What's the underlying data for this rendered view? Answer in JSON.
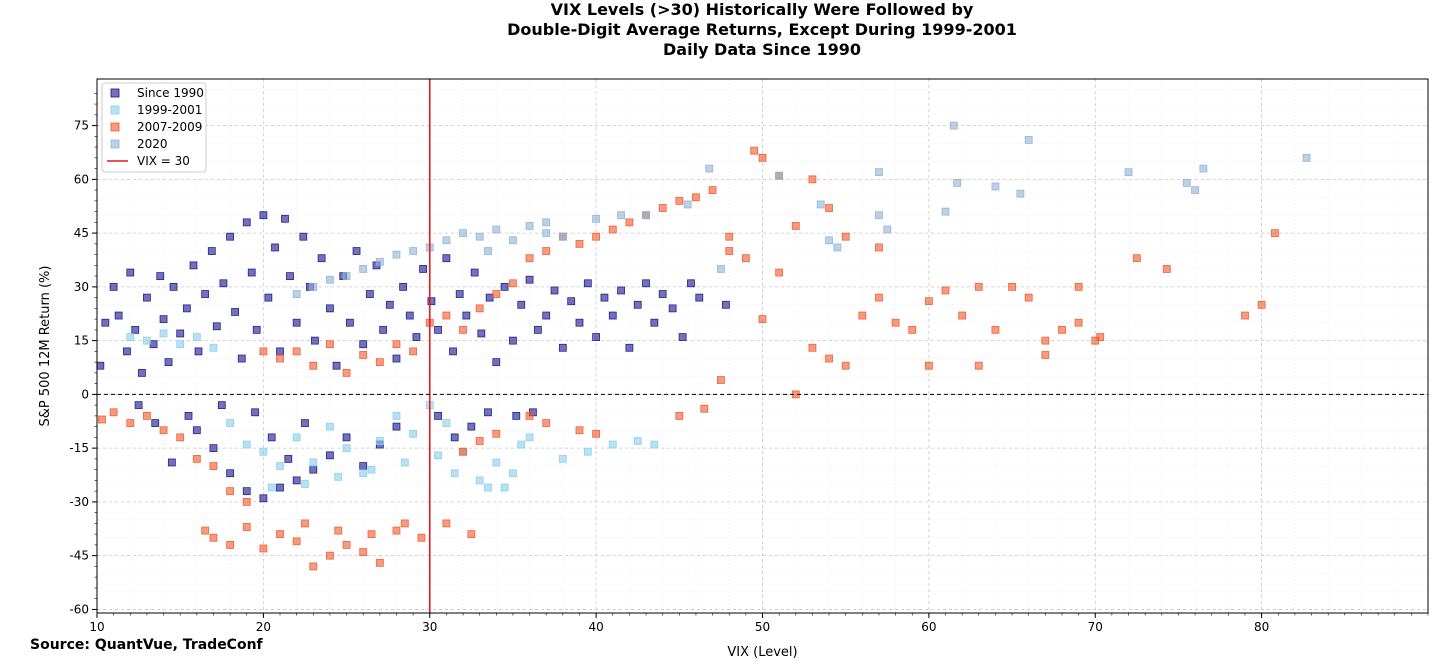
{
  "chart_data": {
    "type": "scatter",
    "title_lines": [
      "VIX Levels (>30) Historically Were Followed by",
      "Double-Digit Average Returns, Except During 1999-2001",
      "Daily Data Since 1990"
    ],
    "xlabel": "VIX (Level)",
    "ylabel": "S&P 500 12M Return (%)",
    "xlim": [
      10,
      90
    ],
    "ylim": [
      -61,
      88
    ],
    "xticks": [
      10,
      20,
      30,
      40,
      50,
      60,
      70,
      80
    ],
    "yticks": [
      -60,
      -45,
      -30,
      -15,
      0,
      15,
      30,
      45,
      60,
      75
    ],
    "grid": true,
    "legend_position": "top-left",
    "reference_lines": [
      {
        "orientation": "vertical",
        "value": 30,
        "label": "VIX = 30",
        "color": "#e41a1c"
      },
      {
        "orientation": "horizontal",
        "value": 0,
        "style": "dashed",
        "color": "#000000"
      }
    ],
    "series": [
      {
        "name": "Since 1990",
        "color": "#14148c",
        "points": [
          [
            10.2,
            8
          ],
          [
            10.5,
            20
          ],
          [
            11,
            30
          ],
          [
            11.3,
            22
          ],
          [
            11.8,
            12
          ],
          [
            12,
            34
          ],
          [
            12.3,
            18
          ],
          [
            12.7,
            6
          ],
          [
            13,
            27
          ],
          [
            13.4,
            14
          ],
          [
            13.8,
            33
          ],
          [
            14,
            21
          ],
          [
            14.3,
            9
          ],
          [
            14.6,
            30
          ],
          [
            15,
            17
          ],
          [
            15.4,
            24
          ],
          [
            15.8,
            36
          ],
          [
            16.1,
            12
          ],
          [
            16.5,
            28
          ],
          [
            16.9,
            40
          ],
          [
            17.2,
            19
          ],
          [
            17.6,
            31
          ],
          [
            18,
            44
          ],
          [
            18.3,
            23
          ],
          [
            18.7,
            10
          ],
          [
            19,
            48
          ],
          [
            19.3,
            34
          ],
          [
            19.6,
            18
          ],
          [
            20,
            50
          ],
          [
            20.3,
            27
          ],
          [
            20.7,
            41
          ],
          [
            21,
            12
          ],
          [
            21.3,
            49
          ],
          [
            21.6,
            33
          ],
          [
            22,
            20
          ],
          [
            22.4,
            44
          ],
          [
            22.8,
            30
          ],
          [
            23.1,
            15
          ],
          [
            23.5,
            38
          ],
          [
            24,
            24
          ],
          [
            24.4,
            8
          ],
          [
            24.8,
            33
          ],
          [
            25.2,
            20
          ],
          [
            25.6,
            40
          ],
          [
            26,
            14
          ],
          [
            26.4,
            28
          ],
          [
            26.8,
            36
          ],
          [
            27.2,
            18
          ],
          [
            27.6,
            25
          ],
          [
            28,
            10
          ],
          [
            28.4,
            30
          ],
          [
            28.8,
            22
          ],
          [
            29.2,
            16
          ],
          [
            29.6,
            35
          ],
          [
            30.1,
            26
          ],
          [
            30.5,
            18
          ],
          [
            31,
            38
          ],
          [
            31.4,
            12
          ],
          [
            31.8,
            28
          ],
          [
            32.2,
            22
          ],
          [
            32.7,
            34
          ],
          [
            33.1,
            17
          ],
          [
            33.6,
            27
          ],
          [
            34,
            9
          ],
          [
            34.5,
            30
          ],
          [
            35,
            15
          ],
          [
            35.5,
            25
          ],
          [
            36,
            32
          ],
          [
            36.5,
            18
          ],
          [
            37,
            22
          ],
          [
            37.5,
            29
          ],
          [
            38,
            13
          ],
          [
            38.5,
            26
          ],
          [
            39,
            20
          ],
          [
            39.5,
            31
          ],
          [
            40,
            16
          ],
          [
            40.5,
            27
          ],
          [
            41,
            22
          ],
          [
            41.5,
            29
          ],
          [
            42,
            13
          ],
          [
            42.5,
            25
          ],
          [
            43,
            31
          ],
          [
            43.5,
            20
          ],
          [
            44,
            28
          ],
          [
            44.6,
            24
          ],
          [
            45.2,
            16
          ],
          [
            45.7,
            31
          ],
          [
            46.2,
            27
          ],
          [
            47.8,
            25
          ],
          [
            12.5,
            -3
          ],
          [
            13.5,
            -8
          ],
          [
            14.5,
            -19
          ],
          [
            16,
            -10
          ],
          [
            17,
            -15
          ],
          [
            18,
            -22
          ],
          [
            19,
            -27
          ],
          [
            20,
            -29
          ],
          [
            21,
            -26
          ],
          [
            22,
            -24
          ],
          [
            23,
            -21
          ],
          [
            24,
            -17
          ],
          [
            25,
            -12
          ],
          [
            26,
            -20
          ],
          [
            27,
            -14
          ],
          [
            28,
            -9
          ],
          [
            30.5,
            -6
          ],
          [
            31.5,
            -12
          ],
          [
            32.5,
            -9
          ],
          [
            33.5,
            -5
          ],
          [
            35.2,
            -6
          ],
          [
            36.2,
            -5
          ],
          [
            19.5,
            -5
          ],
          [
            20.5,
            -12
          ],
          [
            21.5,
            -18
          ],
          [
            22.5,
            -8
          ],
          [
            15.5,
            -6
          ],
          [
            17.5,
            -3
          ]
        ]
      },
      {
        "name": "1999-2001",
        "color": "#87ceeb",
        "points": [
          [
            12,
            16
          ],
          [
            13,
            15
          ],
          [
            14,
            17
          ],
          [
            15,
            14
          ],
          [
            16,
            16
          ],
          [
            17,
            13
          ],
          [
            18,
            -8
          ],
          [
            19,
            -14
          ],
          [
            20,
            -16
          ],
          [
            21,
            -20
          ],
          [
            22,
            -12
          ],
          [
            23,
            -19
          ],
          [
            24,
            -9
          ],
          [
            25,
            -15
          ],
          [
            26,
            -22
          ],
          [
            27,
            -13
          ],
          [
            28,
            -6
          ],
          [
            29,
            -11
          ],
          [
            30,
            -3
          ],
          [
            31,
            -8
          ],
          [
            32,
            -16
          ],
          [
            33,
            -24
          ],
          [
            34,
            -19
          ],
          [
            35,
            -22
          ],
          [
            35.5,
            -14
          ],
          [
            36,
            -12
          ],
          [
            38,
            -18
          ],
          [
            39.5,
            -16
          ],
          [
            41,
            -14
          ],
          [
            42.5,
            -13
          ],
          [
            43.5,
            -14
          ],
          [
            20.5,
            -26
          ],
          [
            22.5,
            -25
          ],
          [
            24.5,
            -23
          ],
          [
            26.5,
            -21
          ],
          [
            28.5,
            -19
          ],
          [
            30.5,
            -17
          ],
          [
            31.5,
            -22
          ],
          [
            33.5,
            -26
          ],
          [
            34.5,
            -26
          ]
        ]
      },
      {
        "name": "2007-2009",
        "color": "#f0582a",
        "points": [
          [
            10.3,
            -7
          ],
          [
            11,
            -5
          ],
          [
            12,
            -8
          ],
          [
            13,
            -6
          ],
          [
            14,
            -10
          ],
          [
            15,
            -12
          ],
          [
            16,
            -18
          ],
          [
            17,
            -20
          ],
          [
            18,
            -27
          ],
          [
            19,
            -30
          ],
          [
            20,
            12
          ],
          [
            21,
            10
          ],
          [
            22,
            12
          ],
          [
            23,
            8
          ],
          [
            24,
            14
          ],
          [
            25,
            6
          ],
          [
            26,
            11
          ],
          [
            27,
            9
          ],
          [
            28,
            14
          ],
          [
            29,
            12
          ],
          [
            30,
            20
          ],
          [
            31,
            22
          ],
          [
            32,
            18
          ],
          [
            33,
            24
          ],
          [
            34,
            28
          ],
          [
            35,
            31
          ],
          [
            36,
            38
          ],
          [
            37,
            40
          ],
          [
            38,
            44
          ],
          [
            39,
            42
          ],
          [
            40,
            44
          ],
          [
            41,
            46
          ],
          [
            42,
            48
          ],
          [
            43,
            50
          ],
          [
            44,
            52
          ],
          [
            45,
            54
          ],
          [
            46,
            55
          ],
          [
            47,
            57
          ],
          [
            48,
            40
          ],
          [
            49,
            38
          ],
          [
            49.5,
            68
          ],
          [
            50,
            66
          ],
          [
            51,
            61
          ],
          [
            53,
            60
          ],
          [
            52,
            47
          ],
          [
            54,
            52
          ],
          [
            55,
            44
          ],
          [
            48,
            44
          ],
          [
            50,
            21
          ],
          [
            51,
            34
          ],
          [
            53,
            13
          ],
          [
            54,
            10
          ],
          [
            55,
            8
          ],
          [
            56,
            22
          ],
          [
            57,
            27
          ],
          [
            58,
            20
          ],
          [
            59,
            18
          ],
          [
            60,
            26
          ],
          [
            61,
            29
          ],
          [
            62,
            22
          ],
          [
            63,
            30
          ],
          [
            64,
            18
          ],
          [
            65,
            30
          ],
          [
            66,
            27
          ],
          [
            67,
            11
          ],
          [
            68,
            18
          ],
          [
            69,
            30
          ],
          [
            70,
            15
          ],
          [
            70.3,
            16
          ],
          [
            72.5,
            38
          ],
          [
            74.3,
            35
          ],
          [
            79,
            22
          ],
          [
            80,
            25
          ],
          [
            80.8,
            45
          ],
          [
            57,
            41
          ],
          [
            60,
            8
          ],
          [
            63,
            8
          ],
          [
            67,
            15
          ],
          [
            69,
            20
          ],
          [
            52,
            0
          ],
          [
            47.5,
            4
          ],
          [
            45,
            -6
          ],
          [
            46.5,
            -4
          ],
          [
            39,
            -10
          ],
          [
            40,
            -11
          ],
          [
            36,
            -6
          ],
          [
            37,
            -8
          ],
          [
            34,
            -11
          ],
          [
            33,
            -13
          ],
          [
            32,
            -16
          ],
          [
            31,
            -36
          ],
          [
            32.5,
            -39
          ],
          [
            29.5,
            -40
          ],
          [
            28,
            -38
          ],
          [
            27,
            -47
          ],
          [
            26,
            -44
          ],
          [
            25,
            -42
          ],
          [
            24,
            -45
          ],
          [
            23,
            -48
          ],
          [
            22,
            -41
          ],
          [
            21,
            -39
          ],
          [
            20,
            -43
          ],
          [
            19,
            -37
          ],
          [
            18,
            -42
          ],
          [
            17,
            -40
          ],
          [
            16.5,
            -38
          ],
          [
            22.5,
            -36
          ],
          [
            24.5,
            -38
          ],
          [
            26.5,
            -39
          ],
          [
            28.5,
            -36
          ]
        ]
      },
      {
        "name": "2020",
        "color": "#8fb0d6",
        "points": [
          [
            22,
            28
          ],
          [
            23,
            30
          ],
          [
            24,
            32
          ],
          [
            25,
            33
          ],
          [
            26,
            35
          ],
          [
            27,
            37
          ],
          [
            28,
            39
          ],
          [
            29,
            40
          ],
          [
            30,
            41
          ],
          [
            31,
            43
          ],
          [
            32,
            45
          ],
          [
            33,
            44
          ],
          [
            34,
            46
          ],
          [
            35,
            43
          ],
          [
            36,
            47
          ],
          [
            37,
            45
          ],
          [
            38,
            44
          ],
          [
            40,
            49
          ],
          [
            41.5,
            50
          ],
          [
            43,
            50
          ],
          [
            45.5,
            53
          ],
          [
            46.8,
            63
          ],
          [
            47.5,
            35
          ],
          [
            51,
            61
          ],
          [
            53.5,
            53
          ],
          [
            54,
            43
          ],
          [
            54.5,
            41
          ],
          [
            57,
            62
          ],
          [
            57,
            50
          ],
          [
            57.5,
            46
          ],
          [
            61,
            51
          ],
          [
            61.5,
            75
          ],
          [
            61.7,
            59
          ],
          [
            64,
            58
          ],
          [
            65.5,
            56
          ],
          [
            66,
            71
          ],
          [
            72,
            62
          ],
          [
            75.5,
            59
          ],
          [
            76,
            57
          ],
          [
            76.5,
            63
          ],
          [
            82.7,
            66
          ],
          [
            37,
            48
          ],
          [
            33.5,
            40
          ]
        ]
      }
    ]
  },
  "source_text": "Source: QuantVue, TradeConf"
}
